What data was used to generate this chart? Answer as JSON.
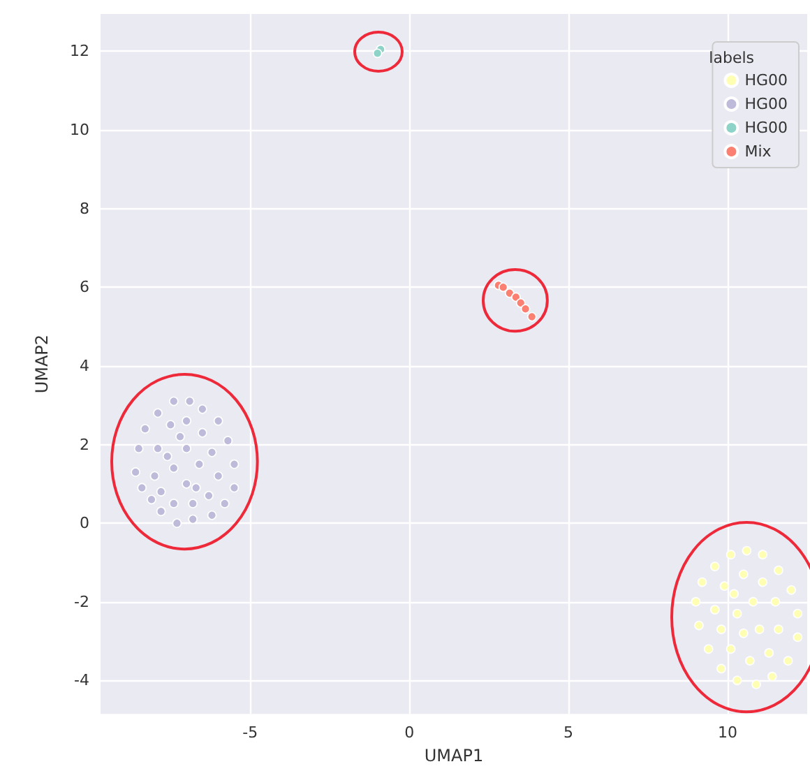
{
  "chart_data": {
    "type": "scatter",
    "xlabel": "UMAP1",
    "ylabel": "UMAP2",
    "legend_title": "labels",
    "legend": "top right",
    "grid": true,
    "marker": "circle",
    "xlim": [
      -9.7,
      12.5
    ],
    "ylim": [
      -4.85,
      12.95
    ],
    "xticks": [
      -5,
      0,
      5,
      10
    ],
    "yticks": [
      -4,
      -2,
      0,
      2,
      4,
      6,
      8,
      10,
      12
    ],
    "series": [
      {
        "name": "HG00",
        "color": "#ffffb3",
        "x": [
          9.0,
          9.2,
          9.6,
          10.1,
          10.6,
          11.1,
          11.6,
          12.0,
          12.2,
          12.2,
          11.9,
          11.4,
          10.9,
          10.3,
          9.8,
          9.4,
          9.1,
          9.6,
          9.9,
          10.5,
          11.1,
          11.5,
          11.6,
          11.3,
          10.7,
          10.1,
          9.8,
          10.3,
          10.8,
          11.0,
          10.5,
          10.2
        ],
        "values": [
          -2.0,
          -1.5,
          -1.1,
          -0.8,
          -0.7,
          -0.8,
          -1.2,
          -1.7,
          -2.3,
          -2.9,
          -3.5,
          -3.9,
          -4.1,
          -4.0,
          -3.7,
          -3.2,
          -2.6,
          -2.2,
          -1.6,
          -1.3,
          -1.5,
          -2.0,
          -2.7,
          -3.3,
          -3.5,
          -3.2,
          -2.7,
          -2.3,
          -2.0,
          -2.7,
          -2.8,
          -1.8
        ]
      },
      {
        "name": "HG00",
        "color": "#bebada",
        "x": [
          -8.6,
          -8.5,
          -8.3,
          -7.9,
          -7.4,
          -6.9,
          -6.5,
          -6.0,
          -5.7,
          -5.5,
          -5.5,
          -5.8,
          -6.2,
          -6.8,
          -7.3,
          -7.8,
          -8.1,
          -8.4,
          -8.0,
          -7.9,
          -7.5,
          -7.0,
          -6.5,
          -6.2,
          -6.0,
          -6.3,
          -6.8,
          -7.4,
          -7.8,
          -7.4,
          -7.0,
          -6.6,
          -7.0,
          -7.2,
          -6.7,
          -7.6
        ],
        "values": [
          1.3,
          1.9,
          2.4,
          2.8,
          3.1,
          3.1,
          2.9,
          2.6,
          2.1,
          1.5,
          0.9,
          0.5,
          0.2,
          0.1,
          0.0,
          0.3,
          0.6,
          0.9,
          1.2,
          1.9,
          2.5,
          2.6,
          2.3,
          1.8,
          1.2,
          0.7,
          0.5,
          0.5,
          0.8,
          1.4,
          1.9,
          1.5,
          1.0,
          2.2,
          0.9,
          1.7
        ]
      },
      {
        "name": "HG00",
        "color": "#8dd3c7",
        "x": [
          -0.9,
          -1.0
        ],
        "values": [
          12.05,
          11.95
        ]
      },
      {
        "name": "Mix",
        "color": "#fb8072",
        "x": [
          2.8,
          2.95,
          3.15,
          3.35,
          3.5,
          3.65,
          3.85
        ],
        "values": [
          6.05,
          6.0,
          5.85,
          5.75,
          5.6,
          5.45,
          5.25
        ]
      }
    ]
  }
}
